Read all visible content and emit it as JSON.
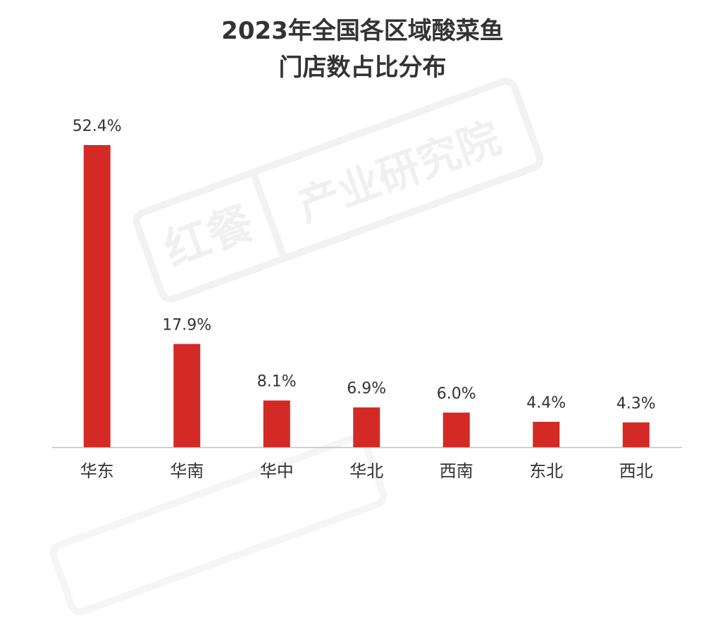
{
  "title_line1": "2023年全国各区域酸菜鱼",
  "title_line2": "门店数占比分布",
  "watermark": {
    "brand": "红餐",
    "text": "产业研究院"
  },
  "colors": {
    "bar": "#d42a26",
    "axis": "#bfbfbf",
    "text": "#333333"
  },
  "chart_data": {
    "type": "bar",
    "title": "2023年全国各区域酸菜鱼门店数占比分布",
    "categories": [
      "华东",
      "华南",
      "华中",
      "华北",
      "西南",
      "东北",
      "西北"
    ],
    "values": [
      52.4,
      17.9,
      8.1,
      6.9,
      6.0,
      4.4,
      4.3
    ],
    "value_labels": [
      "52.4%",
      "17.9%",
      "8.1%",
      "6.9%",
      "6.0%",
      "4.4%",
      "4.3%"
    ],
    "xlabel": "",
    "ylabel": "",
    "ylim": [
      0,
      52.4
    ],
    "grid": false,
    "legend": "none"
  }
}
